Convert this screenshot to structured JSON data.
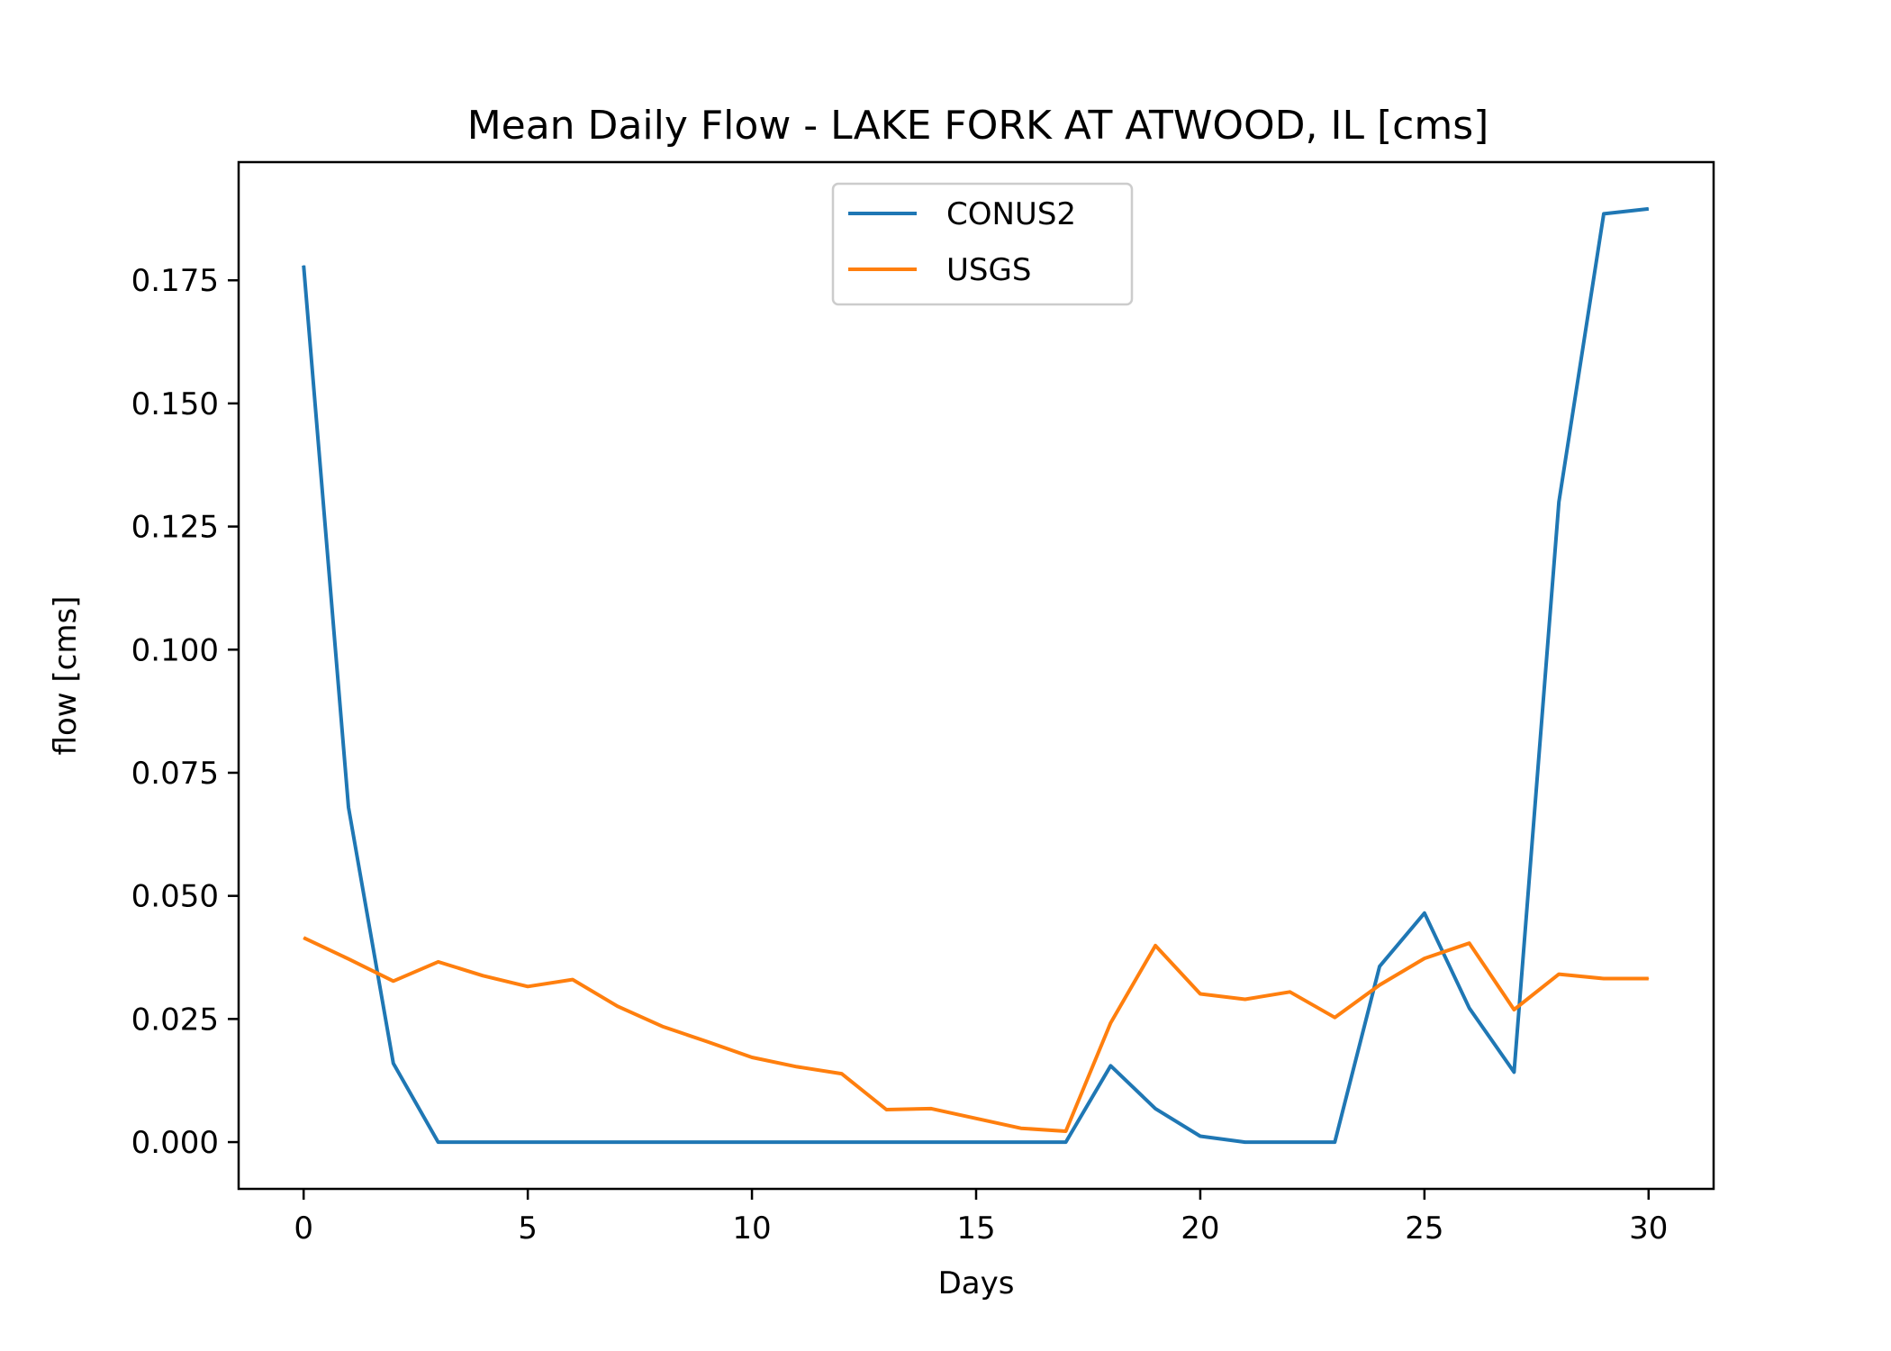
{
  "chart_data": {
    "type": "line",
    "title": "Mean Daily Flow - LAKE FORK AT ATWOOD, IL [cms]",
    "xlabel": "Days",
    "ylabel": "flow [cms]",
    "xlim": [
      -1.45,
      31.45
    ],
    "ylim": [
      -0.0095,
      0.199
    ],
    "xticks": [
      0,
      5,
      10,
      15,
      20,
      25,
      30
    ],
    "xtick_labels": [
      "0",
      "5",
      "10",
      "15",
      "20",
      "25",
      "30"
    ],
    "yticks": [
      0.0,
      0.025,
      0.05,
      0.075,
      0.1,
      0.125,
      0.15,
      0.175
    ],
    "ytick_labels": [
      "0.000",
      "0.025",
      "0.050",
      "0.075",
      "0.100",
      "0.125",
      "0.150",
      "0.175"
    ],
    "grid": false,
    "legend_position": "upper center",
    "x": [
      0,
      1,
      2,
      3,
      4,
      5,
      6,
      7,
      8,
      9,
      10,
      11,
      12,
      13,
      14,
      15,
      16,
      17,
      18,
      19,
      20,
      21,
      22,
      23,
      24,
      25,
      26,
      27,
      28,
      29,
      30
    ],
    "series": [
      {
        "name": "CONUS2",
        "color": "#1f77b4",
        "values": [
          0.178,
          0.068,
          0.016,
          0.0,
          0.0,
          0.0,
          0.0,
          0.0,
          0.0,
          0.0,
          0.0,
          0.0,
          0.0,
          0.0,
          0.0,
          0.0,
          0.0,
          0.0,
          0.0155,
          0.0068,
          0.0012,
          0.0,
          0.0,
          0.0,
          0.0357,
          0.0465,
          0.0272,
          0.0142,
          0.13,
          0.1885,
          0.1895
        ]
      },
      {
        "name": "USGS",
        "color": "#ff7f0e",
        "values": [
          0.0415,
          0.0372,
          0.0327,
          0.0366,
          0.0338,
          0.0316,
          0.033,
          0.0276,
          0.0235,
          0.0204,
          0.0172,
          0.0153,
          0.0139,
          0.0066,
          0.0068,
          0.0048,
          0.0028,
          0.0022,
          0.0242,
          0.0399,
          0.0301,
          0.029,
          0.0305,
          0.0253,
          0.0319,
          0.0373,
          0.0404,
          0.0269,
          0.0341,
          0.0332,
          0.0332
        ]
      }
    ]
  }
}
